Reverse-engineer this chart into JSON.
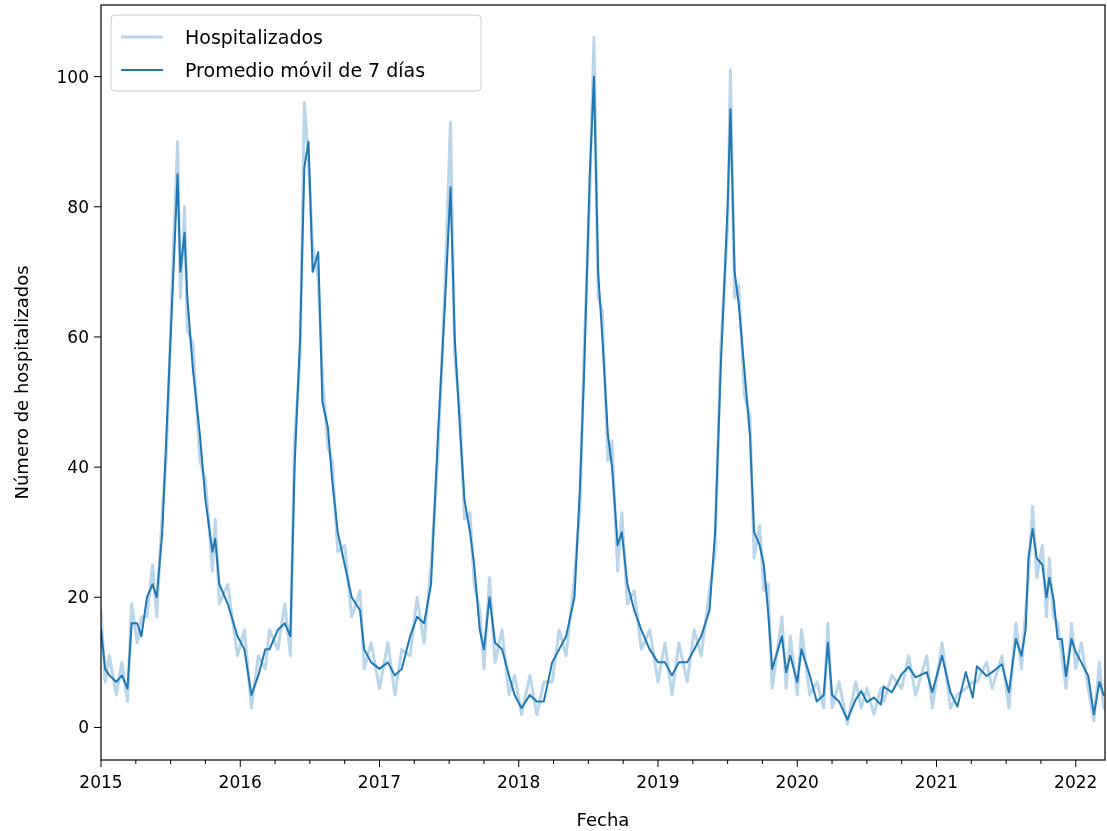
{
  "chart_data": {
    "type": "line",
    "xlabel": "Fecha",
    "ylabel": "Número de hospitalizados",
    "legend": "top left",
    "grid": false,
    "xlim": [
      2015,
      2022.21
    ],
    "ylim": [
      -5,
      111
    ],
    "xticks": [
      2015,
      {
        "value": 2015.25,
        "label": null
      },
      {
        "value": 2015.5,
        "label": null
      },
      {
        "value": 2015.75,
        "label": null
      },
      2016,
      {
        "value": 2016.25,
        "label": null
      },
      {
        "value": 2016.5,
        "label": null
      },
      {
        "value": 2016.75,
        "label": null
      },
      2017,
      {
        "value": 2017.25,
        "label": null
      },
      {
        "value": 2017.5,
        "label": null
      },
      {
        "value": 2017.75,
        "label": null
      },
      2018,
      {
        "value": 2018.25,
        "label": null
      },
      {
        "value": 2018.5,
        "label": null
      },
      {
        "value": 2018.75,
        "label": null
      },
      2019,
      {
        "value": 2019.25,
        "label": null
      },
      {
        "value": 2019.5,
        "label": null
      },
      {
        "value": 2019.75,
        "label": null
      },
      2020,
      {
        "value": 2020.25,
        "label": null
      },
      {
        "value": 2020.5,
        "label": null
      },
      {
        "value": 2020.75,
        "label": null
      },
      2021,
      {
        "value": 2021.25,
        "label": null
      },
      {
        "value": 2021.5,
        "label": null
      },
      {
        "value": 2021.75,
        "label": null
      },
      2022
    ],
    "yticks": [
      0,
      20,
      40,
      60,
      80,
      100
    ],
    "x": [
      2015.0,
      2015.03,
      2015.06,
      2015.11,
      2015.15,
      2015.19,
      2015.22,
      2015.26,
      2015.29,
      2015.33,
      2015.37,
      2015.4,
      2015.44,
      2015.47,
      2015.51,
      2015.55,
      2015.57,
      2015.6,
      2015.62,
      2015.66,
      2015.71,
      2015.75,
      2015.8,
      2015.82,
      2015.85,
      2015.91,
      2015.98,
      2016.03,
      2016.08,
      2016.13,
      2016.18,
      2016.21,
      2016.27,
      2016.32,
      2016.36,
      2016.39,
      2016.43,
      2016.46,
      2016.49,
      2016.52,
      2016.56,
      2016.59,
      2016.63,
      2016.66,
      2016.7,
      2016.75,
      2016.8,
      2016.86,
      2016.89,
      2016.94,
      2017.0,
      2017.06,
      2017.11,
      2017.16,
      2017.22,
      2017.27,
      2017.32,
      2017.37,
      2017.42,
      2017.47,
      2017.51,
      2017.54,
      2017.58,
      2017.61,
      2017.65,
      2017.68,
      2017.72,
      2017.75,
      2017.79,
      2017.83,
      2017.88,
      2017.93,
      2017.97,
      2018.02,
      2018.08,
      2018.13,
      2018.18,
      2018.24,
      2018.29,
      2018.34,
      2018.4,
      2018.44,
      2018.47,
      2018.51,
      2018.54,
      2018.57,
      2018.6,
      2018.64,
      2018.67,
      2018.71,
      2018.74,
      2018.78,
      2018.83,
      2018.88,
      2018.94,
      2019.0,
      2019.05,
      2019.1,
      2019.15,
      2019.21,
      2019.26,
      2019.31,
      2019.37,
      2019.41,
      2019.45,
      2019.5,
      2019.52,
      2019.55,
      2019.58,
      2019.62,
      2019.66,
      2019.69,
      2019.73,
      2019.76,
      2019.79,
      2019.82,
      2019.89,
      2019.92,
      2019.95,
      2020.0,
      2020.03,
      2020.09,
      2020.14,
      2020.19,
      2020.22,
      2020.25,
      2020.3,
      2020.36,
      2020.42,
      2020.46,
      2020.5,
      2020.55,
      2020.6,
      2020.62,
      2020.68,
      2020.75,
      2020.8,
      2020.85,
      2020.93,
      2020.97,
      2021.04,
      2021.1,
      2021.15,
      2021.21,
      2021.26,
      2021.29,
      2021.36,
      2021.4,
      2021.47,
      2021.52,
      2021.57,
      2021.61,
      2021.64,
      2021.66,
      2021.69,
      2021.72,
      2021.76,
      2021.79,
      2021.81,
      2021.84,
      2021.87,
      2021.9,
      2021.93,
      2021.97,
      2022.0,
      2022.04,
      2022.09,
      2022.13,
      2022.17,
      2022.2
    ],
    "series": [
      {
        "name": "Hospitalizados",
        "color": "#bbd6e8",
        "values": [
          18,
          7,
          11,
          5,
          10,
          4,
          19,
          13,
          17,
          17,
          25,
          17,
          33,
          42,
          68,
          90,
          66,
          80,
          61,
          59,
          41,
          38,
          24,
          32,
          19,
          22,
          11,
          15,
          3,
          11,
          9,
          15,
          12,
          19,
          11,
          44,
          57,
          96,
          87,
          74,
          69,
          54,
          43,
          41,
          27,
          28,
          17,
          21,
          9,
          13,
          6,
          13,
          5,
          12,
          11,
          20,
          13,
          25,
          42,
          68,
          93,
          57,
          48,
          32,
          33,
          22,
          18,
          9,
          23,
          10,
          15,
          5,
          8,
          2,
          8,
          2,
          7,
          7,
          15,
          11,
          23,
          34,
          58,
          82,
          106,
          66,
          64,
          41,
          44,
          24,
          33,
          19,
          21,
          12,
          15,
          7,
          13,
          5,
          13,
          7,
          15,
          11,
          21,
          27,
          58,
          77,
          101,
          66,
          68,
          51,
          48,
          26,
          31,
          21,
          22,
          6,
          17,
          6,
          14,
          5,
          15,
          5,
          7,
          3,
          16,
          3,
          7,
          0.5,
          7,
          3,
          6,
          2,
          6,
          4,
          8,
          6,
          11,
          5,
          11,
          3,
          13,
          3,
          5,
          6,
          7,
          7,
          10,
          6,
          11,
          3,
          16,
          9,
          18,
          23,
          34,
          23,
          28,
          17,
          26,
          17,
          16,
          11,
          6,
          16,
          9,
          13,
          6,
          1,
          10,
          3
        ]
      },
      {
        "name": "Promedio móvil de 7 días",
        "color": "#1f77b4",
        "values": [
          15,
          9,
          8,
          7,
          8,
          6,
          16,
          16,
          14,
          20,
          22,
          20,
          30,
          45,
          65,
          85,
          70,
          76,
          66,
          55,
          45,
          35,
          27,
          29,
          22,
          19,
          14,
          12,
          5,
          8,
          12,
          12,
          15,
          16,
          14,
          40,
          60,
          86,
          90,
          70,
          73,
          50,
          46,
          38,
          30,
          25,
          20,
          18,
          12,
          10,
          9,
          10,
          8,
          9,
          14,
          17,
          16,
          22,
          45,
          65,
          83,
          60,
          45,
          35,
          30,
          25,
          15,
          12,
          20,
          13,
          12,
          8,
          5,
          3,
          5,
          4,
          4,
          10,
          12,
          14,
          20,
          37,
          55,
          85,
          100,
          70,
          60,
          45,
          40,
          28,
          30,
          22,
          18,
          15,
          12,
          10,
          10,
          8,
          10,
          10,
          12,
          14,
          18,
          30,
          55,
          80,
          95,
          70,
          65,
          55,
          45,
          30,
          28,
          25,
          18,
          9,
          14,
          8.5,
          11,
          7,
          12,
          8,
          4,
          5,
          13,
          5,
          4,
          1.2,
          4.3,
          5.6,
          3.9,
          4.6,
          3.5,
          6.3,
          5.4,
          8.2,
          9.3,
          7.7,
          8.5,
          5.4,
          11,
          5.4,
          3.2,
          8.5,
          4.6,
          9.4,
          7.9,
          8.5,
          9.7,
          5.4,
          13.6,
          11,
          15,
          26,
          30.5,
          26,
          25,
          20,
          23,
          19.8,
          13.6,
          13.6,
          7.9,
          13.6,
          11.6,
          10,
          7.9,
          2,
          7,
          5
        ]
      }
    ]
  }
}
